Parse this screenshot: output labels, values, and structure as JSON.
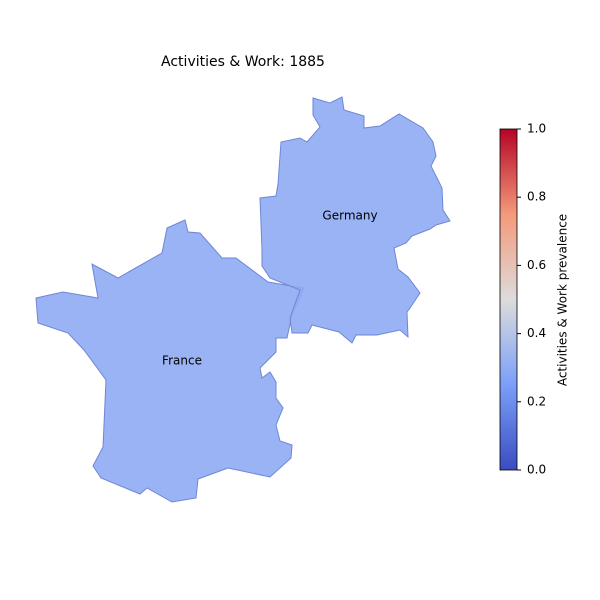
{
  "chart_data": {
    "type": "choropleth",
    "title": "Activities & Work: 1885",
    "regions": [
      {
        "name": "France",
        "value": 0.3
      },
      {
        "name": "Germany",
        "value": 0.3
      }
    ],
    "colormap": "coolwarm",
    "clim": [
      0,
      1
    ],
    "cticks": [
      {
        "value": 0,
        "label": "0.0"
      },
      {
        "value": 0.2,
        "label": "0.2"
      },
      {
        "value": 0.4,
        "label": "0.4"
      },
      {
        "value": 0.6,
        "label": "0.6"
      },
      {
        "value": 0.8,
        "label": "0.8"
      },
      {
        "value": 1,
        "label": "1.0"
      }
    ],
    "colorbar_label": "Activities & Work prevalence"
  }
}
